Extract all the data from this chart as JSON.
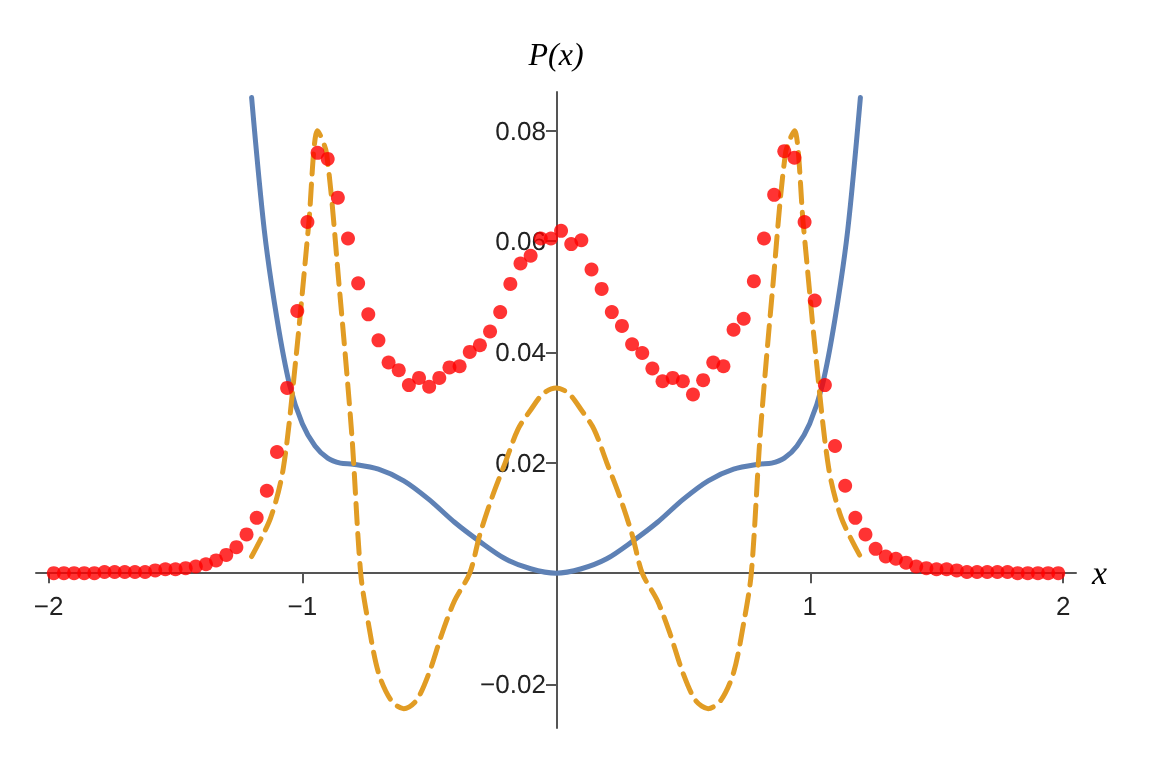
{
  "chart_data": {
    "type": "scatter",
    "xlabel": "x",
    "ylabel": "P(x)",
    "xlim": [
      -2.05,
      2.05
    ],
    "ylim": [
      -0.028,
      0.087
    ],
    "xticks": [
      -2,
      -1,
      1,
      2
    ],
    "yticks": [
      -0.02,
      0.02,
      0.04,
      0.06,
      0.08
    ],
    "grid": false,
    "series": [
      {
        "type": "line",
        "color": "#5e81b5",
        "marker": "none",
        "line_style": "solid",
        "x": [
          -1.2,
          -1.15,
          -1.1,
          -1.05,
          -1,
          -0.95,
          -0.9,
          -0.85,
          -0.8,
          -0.7,
          -0.6,
          -0.5,
          -0.4,
          -0.3,
          -0.2,
          -0.1,
          0,
          0.1,
          0.2,
          0.3,
          0.4,
          0.5,
          0.6,
          0.7,
          0.8,
          0.85,
          0.9,
          0.95,
          1,
          1.05,
          1.1,
          1.15,
          1.2
        ],
        "values": [
          0.086,
          0.062,
          0.046,
          0.034,
          0.027,
          0.023,
          0.0208,
          0.0199,
          0.0197,
          0.0188,
          0.0167,
          0.0133,
          0.0092,
          0.0057,
          0.0026,
          0.0008,
          0,
          0.0008,
          0.0026,
          0.0057,
          0.0092,
          0.0133,
          0.0167,
          0.0188,
          0.0197,
          0.0199,
          0.0208,
          0.023,
          0.027,
          0.034,
          0.046,
          0.062,
          0.086
        ]
      },
      {
        "type": "line",
        "color": "#e19c24",
        "marker": "none",
        "line_style": "dashed",
        "x": [
          -1.2,
          -1.125,
          -1.075,
          -1.025,
          -0.975,
          -0.94,
          -0.905,
          -0.855,
          -0.805,
          -0.77,
          -0.74,
          -0.7,
          -0.65,
          -0.6,
          -0.55,
          -0.5,
          -0.45,
          -0.4,
          -0.34,
          -0.3,
          -0.25,
          -0.2,
          -0.15,
          -0.1,
          -0.05,
          0,
          0.05,
          0.1,
          0.15,
          0.2,
          0.25,
          0.3,
          0.34,
          0.4,
          0.45,
          0.5,
          0.55,
          0.6,
          0.65,
          0.7,
          0.74,
          0.77,
          0.805,
          0.855,
          0.905,
          0.94,
          0.975,
          1.025,
          1.075,
          1.125,
          1.2
        ],
        "values": [
          0.003,
          0.01,
          0.019,
          0.039,
          0.063,
          0.08,
          0.076,
          0.052,
          0.025,
          0,
          -0.009,
          -0.018,
          -0.023,
          -0.0245,
          -0.023,
          -0.018,
          -0.011,
          -0.005,
          0,
          0.007,
          0.014,
          0.02,
          0.026,
          0.0295,
          0.0325,
          0.0335,
          0.0325,
          0.0295,
          0.026,
          0.02,
          0.014,
          0.007,
          0,
          -0.005,
          -0.011,
          -0.018,
          -0.023,
          -0.0245,
          -0.023,
          -0.018,
          -0.009,
          0,
          0.025,
          0.052,
          0.076,
          0.08,
          0.063,
          0.039,
          0.019,
          0.01,
          0.003
        ]
      },
      {
        "color": "#ff0000",
        "marker": "circle",
        "x": [
          -1.98,
          -1.94,
          -1.9,
          -1.86,
          -1.82,
          -1.78,
          -1.74,
          -1.7,
          -1.66,
          -1.62,
          -1.58,
          -1.54,
          -1.5,
          -1.46,
          -1.42,
          -1.38,
          -1.34,
          -1.3,
          -1.26,
          -1.22,
          -1.18,
          -1.14,
          -1.1,
          -1.06,
          -1.02,
          -0.98,
          -0.94,
          -0.9,
          -0.86,
          -0.82,
          -0.78,
          -0.74,
          -0.7,
          -0.66,
          -0.62,
          -0.58,
          -0.54,
          -0.5,
          -0.46,
          -0.42,
          -0.38,
          -0.34,
          -0.3,
          -0.26,
          -0.22,
          -0.18,
          -0.14,
          -0.1,
          -0.06,
          -0.02,
          0.02,
          0.06,
          0.1,
          0.14,
          0.18,
          0.22,
          0.26,
          0.3,
          0.34,
          0.38,
          0.42,
          0.46,
          0.5,
          0.54,
          0.58,
          0.62,
          0.66,
          0.7,
          0.74,
          0.78,
          0.82,
          0.86,
          0.9,
          0.94,
          0.98,
          1.02,
          1.06,
          1.1,
          1.14,
          1.18,
          1.22,
          1.26,
          1.3,
          1.34,
          1.38,
          1.42,
          1.46,
          1.5,
          1.54,
          1.58,
          1.62,
          1.66,
          1.7,
          1.74,
          1.78,
          1.82,
          1.86,
          1.9,
          1.94,
          1.98
        ],
        "values": [
          0,
          0,
          0,
          0,
          0,
          0.0002,
          0.0002,
          0.0002,
          0.0002,
          0.0002,
          0.0005,
          0.0007,
          0.0007,
          0.0009,
          0.0012,
          0.0016,
          0.0023,
          0.0033,
          0.0047,
          0.007,
          0.01,
          0.0149,
          0.0219,
          0.0335,
          0.0474,
          0.0635,
          0.076,
          0.0749,
          0.0679,
          0.0605,
          0.0524,
          0.0468,
          0.0421,
          0.0381,
          0.0367,
          0.034,
          0.0353,
          0.0337,
          0.0353,
          0.0372,
          0.0374,
          0.04,
          0.0412,
          0.0437,
          0.0472,
          0.0523,
          0.056,
          0.0574,
          0.0605,
          0.0605,
          0.0619,
          0.0595,
          0.0602,
          0.0549,
          0.0514,
          0.0472,
          0.0447,
          0.0414,
          0.0398,
          0.037,
          0.0347,
          0.0353,
          0.0347,
          0.0323,
          0.0349,
          0.0381,
          0.0374,
          0.044,
          0.046,
          0.0528,
          0.0605,
          0.0684,
          0.0763,
          0.0751,
          0.0635,
          0.0493,
          0.034,
          0.023,
          0.0158,
          0.01,
          0.007,
          0.0044,
          0.003,
          0.0026,
          0.0019,
          0.0012,
          0.0009,
          0.0007,
          0.0007,
          0.0005,
          0.0002,
          0.0002,
          0.0002,
          0.0002,
          0.0002,
          0,
          0,
          0,
          0,
          0
        ]
      }
    ]
  }
}
